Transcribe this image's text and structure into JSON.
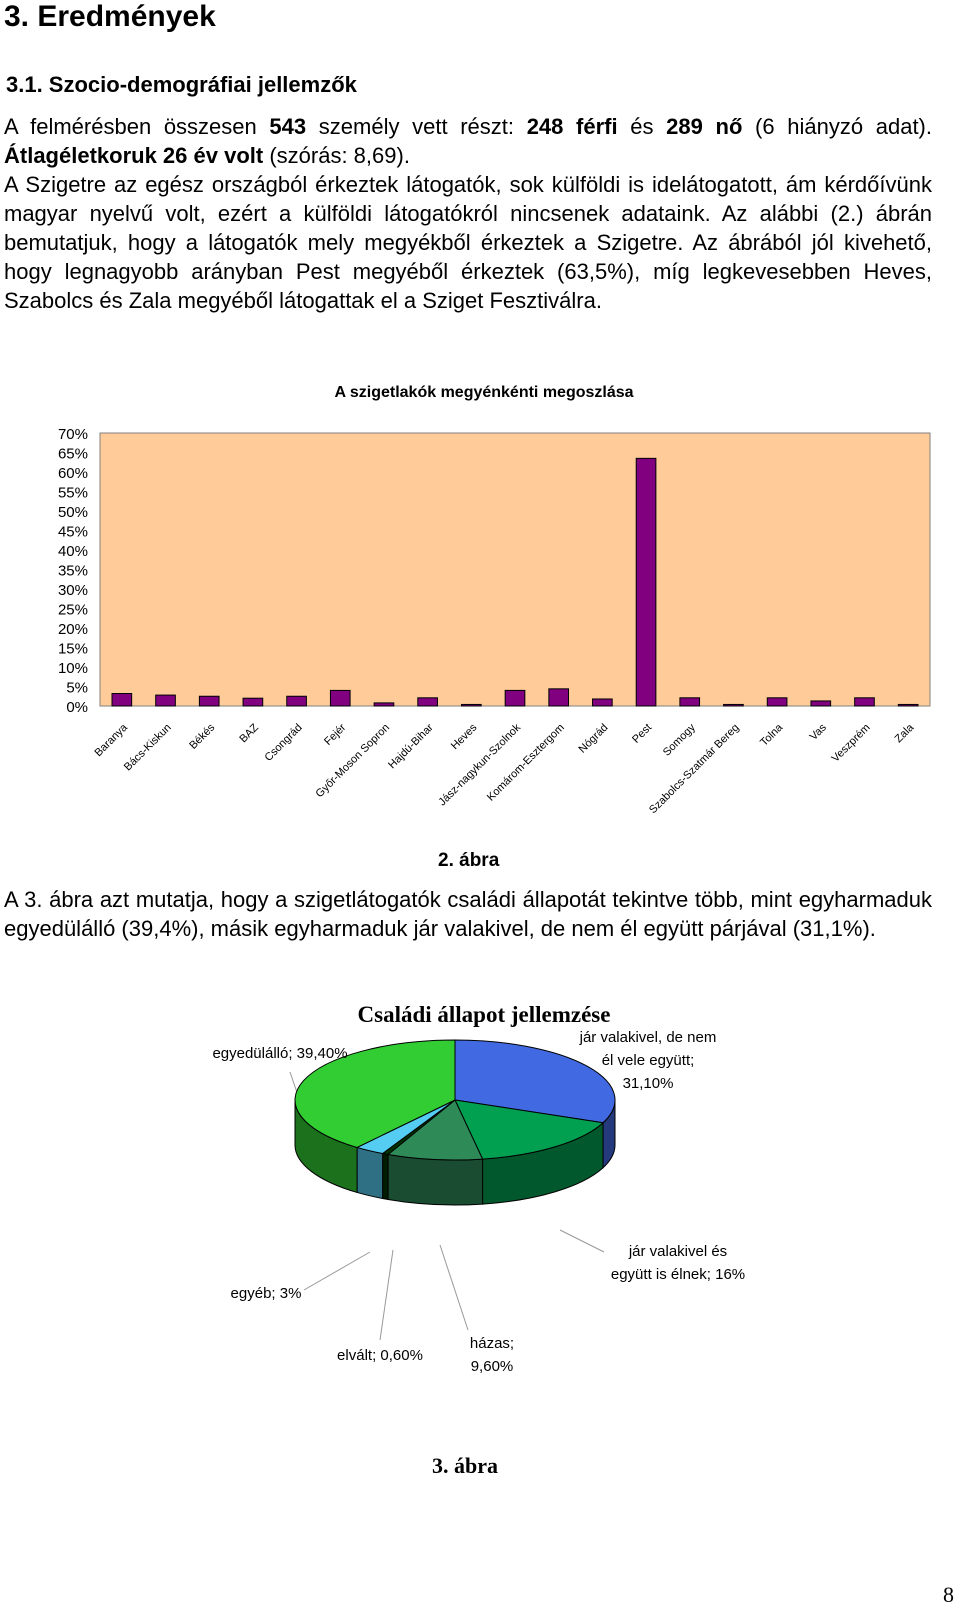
{
  "heading": "3. Eredmények",
  "subheading": "3.1. Szocio-demográfiai jellemzők",
  "para1": {
    "t1": "A felmérésben összesen ",
    "n_total": "543",
    "t2": "  személy vett részt: ",
    "male": "248 férfi",
    "t3": " és ",
    "female": "289 nő",
    "t4": " (6 hiányzó adat). ",
    "age": "Átlagéletkoruk 26 év volt",
    "t5": " (szórás: 8,69)."
  },
  "para2": "A Szigetre az egész országból érkeztek látogatók, sok külföldi is idelátogatott, ám kérdőívünk magyar nyelvű volt, ezért a külföldi látogatókról nincsenek adataink. Az alábbi (2.) ábrán bemutatjuk, hogy a látogatók mely megyékből érkeztek a Szigetre. Az ábrából jól kivehető, hogy legnagyobb arányban Pest megyéből érkeztek (63,5%), míg legkevesebben Heves, Szabolcs és Zala megyéből látogattak el a Sziget Fesztiválra.",
  "caption2": "2. ábra",
  "para3": "A 3. ábra azt mutatja, hogy a szigetlátogatók családi állapotát tekintve több, mint egyharmaduk egyedülálló (39,4%), másik egyharmaduk jár valakivel, de nem él együtt párjával (31,1%).",
  "caption3": "3. ábra",
  "page_number": "8",
  "colors": {
    "bar": "#800080",
    "plot_bg": "#FFCC99"
  },
  "chart_data": [
    {
      "type": "bar",
      "title": "A szigetlakók megyénkénti megoszlása",
      "categories": [
        "Baranya",
        "Bács-Kiskun",
        "Békés",
        "BAZ",
        "Csongrád",
        "Fejér",
        "Győr-Moson Sopron",
        "Hajdú-Bihar",
        "Heves",
        "Jász-nagykun-Szolnok",
        "Komárom-Esztergom",
        "Nógrád",
        "Pest",
        "Somogy",
        "Szabolcs-Szatmár Bereg",
        "Tolna",
        "Vas",
        "Veszprém",
        "Zala"
      ],
      "values": [
        3.2,
        2.8,
        2.5,
        2.0,
        2.5,
        4.0,
        0.8,
        2.1,
        0.4,
        4.0,
        4.4,
        1.8,
        63.5,
        2.1,
        0.4,
        2.1,
        1.3,
        2.1,
        0.4
      ],
      "y_ticks": [
        "0%",
        "5%",
        "10%",
        "15%",
        "20%",
        "25%",
        "30%",
        "35%",
        "40%",
        "45%",
        "50%",
        "55%",
        "60%",
        "65%",
        "70%"
      ],
      "ylim": [
        0,
        70
      ],
      "xlabel": "",
      "ylabel": "",
      "grid": false,
      "legend": "none"
    },
    {
      "type": "pie",
      "title": "Családi állapot jellemzése",
      "slices": [
        {
          "label_lines": [
            "jár valakivel, de nem",
            "él vele együtt;",
            "31,10%"
          ],
          "value": 31.1,
          "color": "#4169E1"
        },
        {
          "label_lines": [
            "jár valakivel és",
            "együtt is élnek; 16%"
          ],
          "value": 16.0,
          "color": "#00A050"
        },
        {
          "label_lines": [
            "házas;",
            "9,60%"
          ],
          "value": 9.6,
          "color": "#2E8B57"
        },
        {
          "label_lines": [
            "elvált; 0,60%"
          ],
          "value": 0.6,
          "color": "#003300"
        },
        {
          "label_lines": [
            "egyéb; 3%"
          ],
          "value": 3.0,
          "color": "#55CCF2"
        },
        {
          "label_lines": [
            "egyedülálló; 39,40%"
          ],
          "value": 39.4,
          "color": "#32CD32"
        }
      ],
      "legend": "none"
    }
  ]
}
